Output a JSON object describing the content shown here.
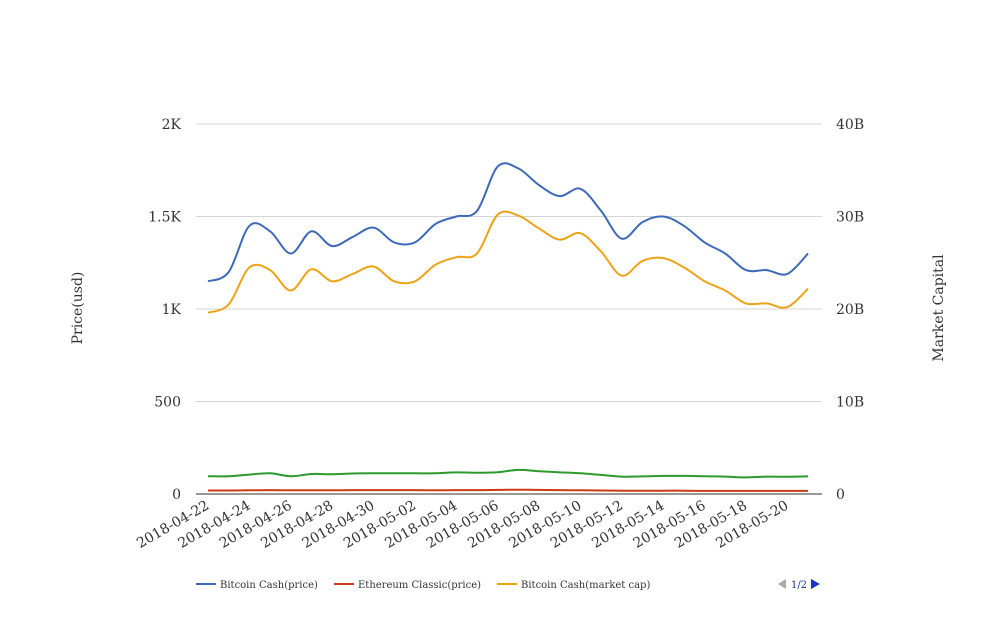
{
  "chart_data": {
    "type": "line",
    "title": "",
    "y_left_label": "Price(usd)",
    "y_right_label": "Market Capital",
    "y_left_ticks": [
      "0",
      "500",
      "1K",
      "1.5K",
      "2K"
    ],
    "y_right_ticks": [
      "0",
      "10B",
      "20B",
      "30B",
      "40B"
    ],
    "y_left_range": [
      0,
      2000
    ],
    "y_right_range": [
      0,
      40000000000
    ],
    "x_tick_labels": [
      "2018-04-22",
      "2018-04-24",
      "2018-04-26",
      "2018-04-28",
      "2018-04-30",
      "2018-05-02",
      "2018-05-04",
      "2018-05-06",
      "2018-05-08",
      "2018-05-10",
      "2018-05-12",
      "2018-05-14",
      "2018-05-16",
      "2018-05-18",
      "2018-05-20"
    ],
    "x": [
      "2018-04-22",
      "2018-04-23",
      "2018-04-24",
      "2018-04-25",
      "2018-04-26",
      "2018-04-27",
      "2018-04-28",
      "2018-04-29",
      "2018-04-30",
      "2018-05-01",
      "2018-05-02",
      "2018-05-03",
      "2018-05-04",
      "2018-05-05",
      "2018-05-06",
      "2018-05-07",
      "2018-05-08",
      "2018-05-09",
      "2018-05-10",
      "2018-05-11",
      "2018-05-12",
      "2018-05-13",
      "2018-05-14",
      "2018-05-15",
      "2018-05-16",
      "2018-05-17",
      "2018-05-18",
      "2018-05-19",
      "2018-05-20",
      "2018-05-21"
    ],
    "series": [
      {
        "name": "Bitcoin Cash(price)",
        "axis": "left",
        "color": "#3c6ab8",
        "values": [
          1150,
          1200,
          1450,
          1420,
          1300,
          1420,
          1340,
          1390,
          1440,
          1360,
          1360,
          1460,
          1500,
          1530,
          1770,
          1760,
          1670,
          1610,
          1650,
          1530,
          1380,
          1470,
          1500,
          1450,
          1360,
          1300,
          1210,
          1210,
          1190,
          1300
        ]
      },
      {
        "name": "Ethereum Classic(price)",
        "axis": "left",
        "color": "#cc3b14",
        "values": [
          19,
          19,
          20,
          21,
          20,
          20,
          20,
          21,
          21,
          21,
          21,
          20,
          21,
          21,
          22,
          23,
          22,
          21,
          20,
          19,
          18,
          18,
          18,
          18,
          17,
          17,
          17,
          17,
          17,
          17
        ]
      },
      {
        "name": "Bitcoin Cash(market cap)",
        "axis": "right",
        "color": "#eea316",
        "values": [
          19600000000,
          20500000000,
          24500000000,
          24200000000,
          22000000000,
          24300000000,
          23000000000,
          23800000000,
          24600000000,
          23000000000,
          23000000000,
          24800000000,
          25600000000,
          26000000000,
          30200000000,
          30100000000,
          28700000000,
          27500000000,
          28200000000,
          26200000000,
          23600000000,
          25200000000,
          25500000000,
          24500000000,
          23000000000,
          22000000000,
          20600000000,
          20600000000,
          20200000000,
          22200000000
        ]
      },
      {
        "name": "",
        "axis": "left",
        "color": "#2c9a2c",
        "values": [
          96,
          96,
          105,
          112,
          96,
          108,
          107,
          111,
          112,
          112,
          112,
          112,
          117,
          115,
          118,
          130,
          123,
          117,
          112,
          103,
          94,
          95,
          98,
          98,
          96,
          94,
          90,
          94,
          93,
          95
        ]
      }
    ],
    "legend_position": "bottom-left",
    "grid": "horizontal",
    "pager": "1/2"
  }
}
